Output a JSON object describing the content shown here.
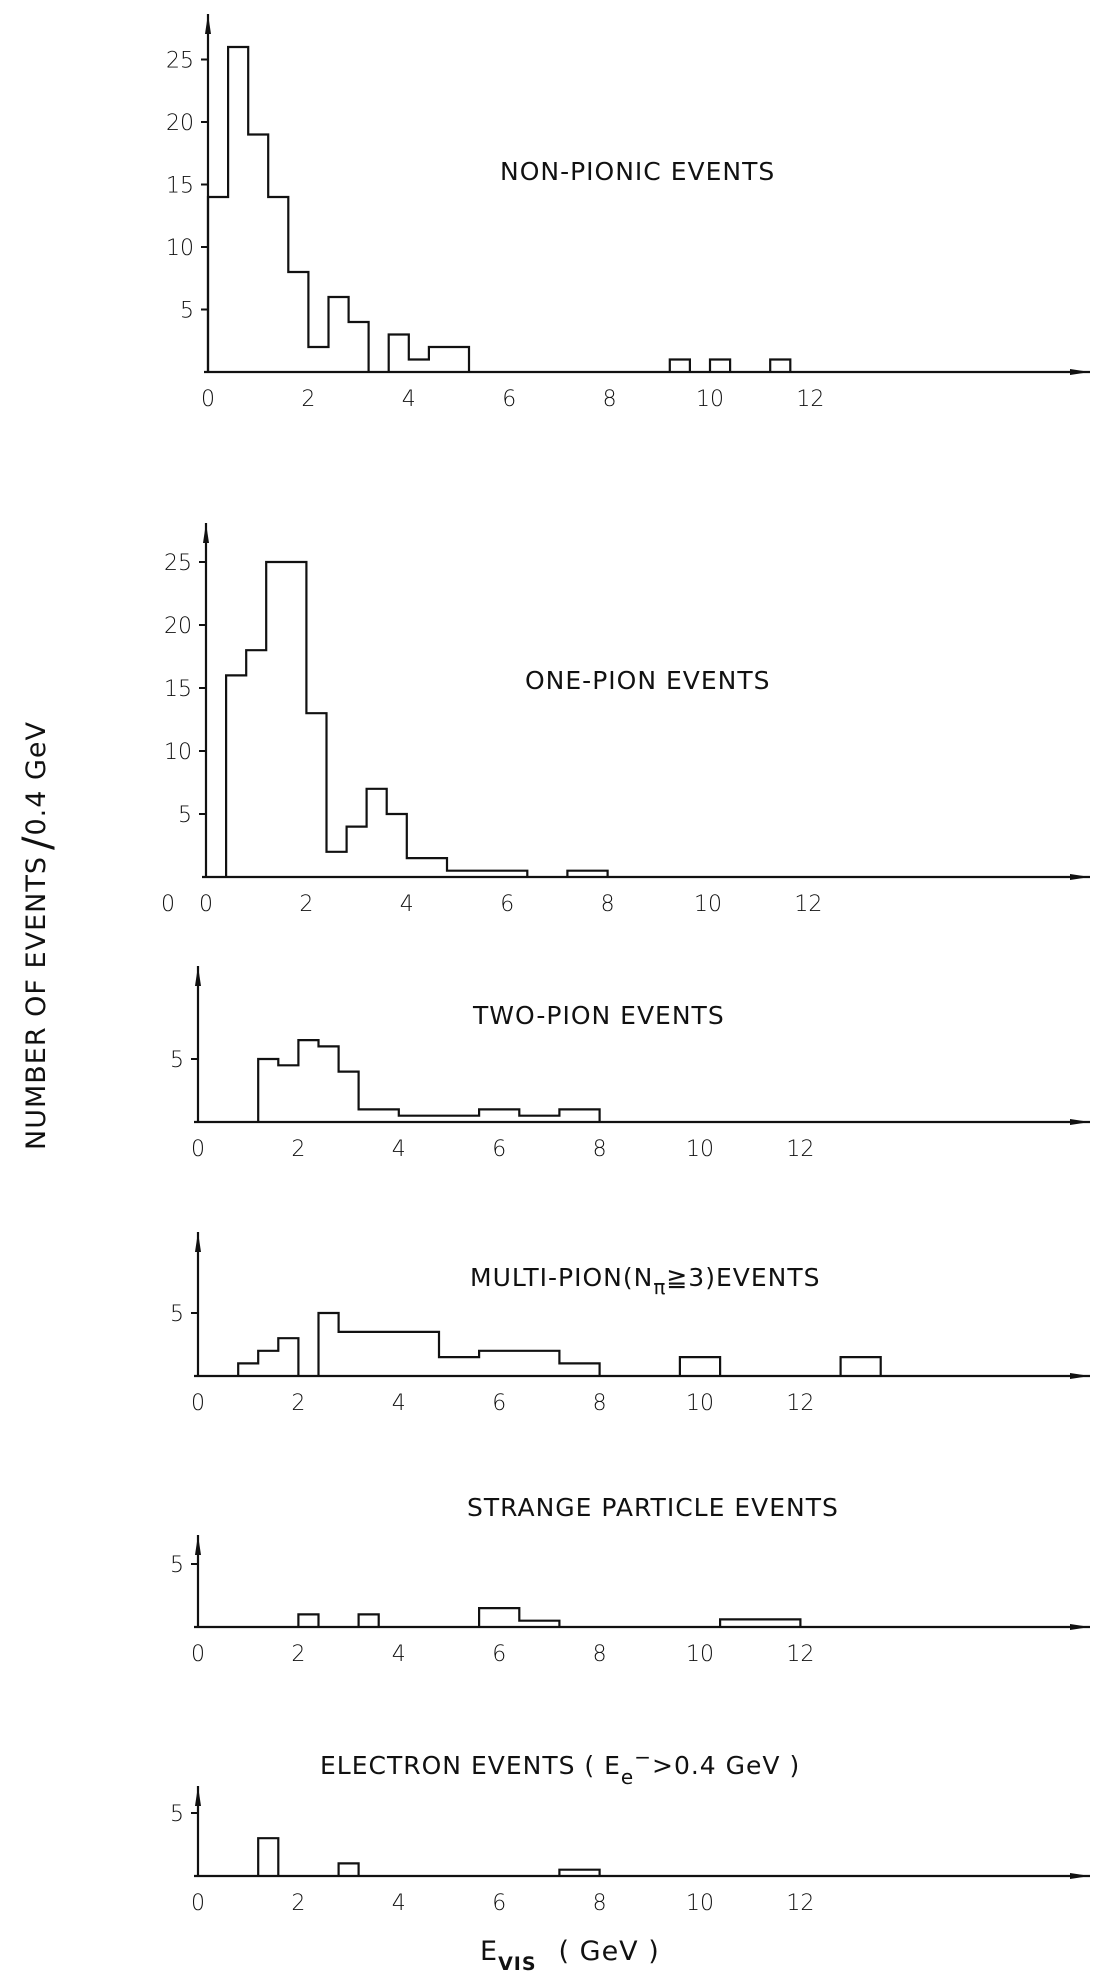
{
  "figure": {
    "ylabel": "NUMBER OF EVENTS",
    "ylabel_unit": "0.4 GeV",
    "xlabel_main": "E",
    "xlabel_sub": "VIS",
    "xlabel_unit": "( GeV )"
  },
  "chart_data": [
    {
      "type": "bar",
      "title": "NON-PIONIC EVENTS",
      "bin_width": 0.4,
      "x_ticks": [
        "0",
        "2",
        "4",
        "6",
        "8",
        "10",
        "12"
      ],
      "y_ticks": [
        "5",
        "10",
        "15",
        "20",
        "25"
      ],
      "xlim": [
        0,
        14
      ],
      "ylim": [
        0,
        28
      ],
      "bins": [
        [
          0,
          14
        ],
        [
          0.4,
          26
        ],
        [
          0.8,
          19
        ],
        [
          1.2,
          14
        ],
        [
          1.6,
          8
        ],
        [
          2.0,
          2
        ],
        [
          2.4,
          6
        ],
        [
          2.8,
          4
        ],
        [
          3.6,
          3
        ],
        [
          4.0,
          1
        ],
        [
          4.4,
          2
        ],
        [
          4.8,
          2
        ],
        [
          9.2,
          1
        ],
        [
          10.0,
          1
        ],
        [
          11.2,
          1
        ]
      ]
    },
    {
      "type": "bar",
      "title": "ONE-PION EVENTS",
      "bin_width": 0.4,
      "x_ticks": [
        "0",
        "2",
        "4",
        "6",
        "8",
        "10",
        "12"
      ],
      "extra_tick": "0",
      "y_ticks": [
        "5",
        "10",
        "15",
        "20",
        "25"
      ],
      "xlim": [
        0,
        14
      ],
      "ylim": [
        0,
        28
      ],
      "bins": [
        [
          0.4,
          16
        ],
        [
          0.8,
          18
        ],
        [
          1.2,
          25
        ],
        [
          1.6,
          25
        ],
        [
          2.0,
          13
        ],
        [
          2.4,
          2
        ],
        [
          2.8,
          4
        ],
        [
          3.2,
          7
        ],
        [
          3.6,
          5
        ],
        [
          4.0,
          1.5
        ],
        [
          4.4,
          1.5
        ],
        [
          4.8,
          0.5
        ],
        [
          5.2,
          0.5
        ],
        [
          5.6,
          0.5
        ],
        [
          6.0,
          0.5
        ],
        [
          7.2,
          0.5
        ],
        [
          7.6,
          0.5
        ]
      ]
    },
    {
      "type": "bar",
      "title": "TWO-PION EVENTS",
      "bin_width": 0.4,
      "x_ticks": [
        "0",
        "2",
        "4",
        "6",
        "8",
        "10",
        "12"
      ],
      "y_ticks": [
        "5"
      ],
      "xlim": [
        0,
        14
      ],
      "ylim": [
        0,
        10
      ],
      "bins": [
        [
          1.2,
          5
        ],
        [
          1.6,
          4.5
        ],
        [
          2.0,
          6.5
        ],
        [
          2.4,
          6
        ],
        [
          2.8,
          4
        ],
        [
          3.2,
          1
        ],
        [
          3.6,
          1
        ],
        [
          4.0,
          0.5
        ],
        [
          4.4,
          0.5
        ],
        [
          4.8,
          0.5
        ],
        [
          5.2,
          0.5
        ],
        [
          5.6,
          1
        ],
        [
          6.0,
          1
        ],
        [
          6.4,
          0.5
        ],
        [
          6.8,
          0.5
        ],
        [
          7.2,
          1
        ],
        [
          7.6,
          1
        ]
      ]
    },
    {
      "type": "bar",
      "title_prefix": "MULTI-PION(N",
      "title_sub": "π",
      "title_suffix": "≧3)EVENTS",
      "bin_width": 0.4,
      "x_ticks": [
        "0",
        "2",
        "4",
        "6",
        "8",
        "10",
        "12"
      ],
      "y_ticks": [
        "5"
      ],
      "xlim": [
        0,
        14
      ],
      "ylim": [
        0,
        10
      ],
      "bins": [
        [
          0.8,
          1
        ],
        [
          1.2,
          2
        ],
        [
          1.6,
          3
        ],
        [
          2.4,
          5
        ],
        [
          2.8,
          3.5
        ],
        [
          3.2,
          3.5
        ],
        [
          3.6,
          3.5
        ],
        [
          4.0,
          3.5
        ],
        [
          4.4,
          3.5
        ],
        [
          4.8,
          1.5
        ],
        [
          5.2,
          1.5
        ],
        [
          5.6,
          2
        ],
        [
          6.0,
          2
        ],
        [
          6.4,
          2
        ],
        [
          6.8,
          2
        ],
        [
          7.2,
          1
        ],
        [
          7.6,
          1
        ],
        [
          9.6,
          1.5
        ],
        [
          10.0,
          1.5
        ],
        [
          12.8,
          1.5
        ],
        [
          13.2,
          1.5
        ]
      ]
    },
    {
      "type": "bar",
      "title": "STRANGE PARTICLE EVENTS",
      "bin_width": 0.4,
      "x_ticks": [
        "0",
        "2",
        "4",
        "6",
        "8",
        "10",
        "12"
      ],
      "y_ticks": [
        "5"
      ],
      "xlim": [
        0,
        14
      ],
      "ylim": [
        0,
        10
      ],
      "bins": [
        [
          2.0,
          1
        ],
        [
          3.2,
          1
        ],
        [
          5.6,
          1.5
        ],
        [
          6.0,
          1.5
        ],
        [
          6.4,
          0.5
        ],
        [
          6.8,
          0.5
        ],
        [
          10.4,
          0.6
        ],
        [
          10.8,
          0.6
        ],
        [
          11.2,
          0.6
        ],
        [
          11.6,
          0.6
        ]
      ]
    },
    {
      "type": "bar",
      "title_prefix": "ELECTRON EVENTS ( E",
      "title_sub": "e",
      "title_sup": "−",
      "title_suffix": ">0.4 GeV  )",
      "bin_width": 0.4,
      "x_ticks": [
        "0",
        "2",
        "4",
        "6",
        "8",
        "10",
        "12"
      ],
      "y_ticks": [
        "5"
      ],
      "xlim": [
        0,
        14
      ],
      "ylim": [
        0,
        10
      ],
      "bins": [
        [
          1.2,
          3
        ],
        [
          2.8,
          1
        ],
        [
          7.2,
          0.5
        ],
        [
          7.6,
          0.5
        ]
      ]
    }
  ]
}
